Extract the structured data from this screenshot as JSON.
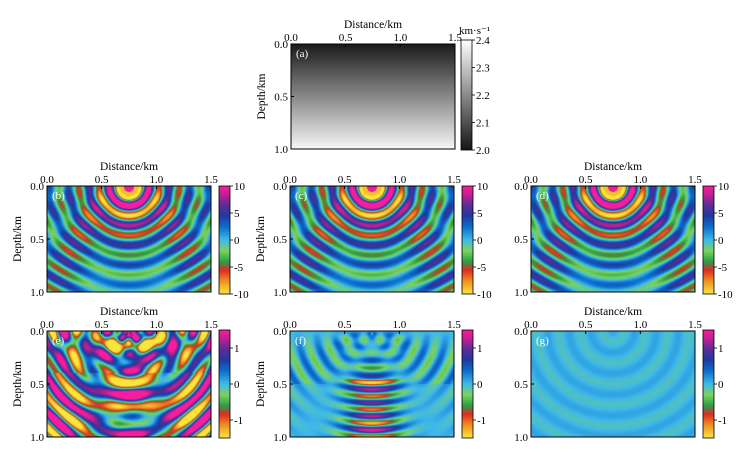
{
  "panels": [
    {
      "id": "a",
      "label": "(a)",
      "kind": "velocity",
      "xlabel": "Distance/km",
      "ylabel": "Depth/km",
      "xticks": [
        "0.0",
        "0.5",
        "1.0",
        "1.5"
      ],
      "yticks": [
        "0.0",
        "0.5",
        "1.0"
      ],
      "colorbar": {
        "unit": "km·s⁻¹",
        "ticks": [
          "2.4",
          "2.3",
          "2.2",
          "2.1",
          "2.0"
        ],
        "range": [
          2.0,
          2.4
        ]
      }
    },
    {
      "id": "b",
      "label": "(b)",
      "kind": "wave",
      "amp": 1.0,
      "xlabel": "Distance/km",
      "ylabel": "Depth/km",
      "xticks": [
        "0.0",
        "0.5",
        "1.0",
        "1.5"
      ],
      "yticks": [
        "0.0",
        "0.5",
        "1.0"
      ],
      "colorbar": {
        "ticks": [
          "10",
          "5",
          "0",
          "-5",
          "-10"
        ],
        "range": [
          -10,
          10
        ]
      }
    },
    {
      "id": "c",
      "label": "(c)",
      "kind": "wave",
      "amp": 1.0,
      "xlabel": "",
      "ylabel": "Depth/km",
      "xticks": [
        "0.0",
        "0.5",
        "1.0",
        "1.5"
      ],
      "yticks": [
        "0.0",
        "0.5",
        "1.0"
      ],
      "colorbar": {
        "ticks": [
          "10",
          "5",
          "0",
          "-5",
          "-10"
        ],
        "range": [
          -10,
          10
        ]
      }
    },
    {
      "id": "d",
      "label": "(d)",
      "kind": "wave",
      "amp": 1.0,
      "xlabel": "Distance/km",
      "ylabel": "",
      "xticks": [
        "0.0",
        "0.5",
        "1.0",
        "1.5"
      ],
      "yticks": [
        "0.0",
        "0.5",
        "1.0"
      ],
      "colorbar": {
        "ticks": [
          "10",
          "5",
          "0",
          "-5",
          "-10"
        ],
        "range": [
          -10,
          10
        ]
      }
    },
    {
      "id": "e",
      "label": "(e)",
      "kind": "diffA",
      "xlabel": "Distance/km",
      "ylabel": "Depth/km",
      "xticks": [
        "0.0",
        "0.5",
        "1.0",
        "1.5"
      ],
      "yticks": [
        "0.0",
        "0.5",
        "1.0"
      ],
      "colorbar": {
        "ticks": [
          "1",
          "0",
          "-1"
        ],
        "range": [
          -1.5,
          1.5
        ]
      }
    },
    {
      "id": "f",
      "label": "(f)",
      "kind": "diffB",
      "xlabel": "",
      "ylabel": "Depth/km",
      "xticks": [
        "0.0",
        "0.5",
        "1.0",
        "1.5"
      ],
      "yticks": [
        "0.0",
        "0.5",
        "1.0"
      ],
      "colorbar": {
        "ticks": [
          "1",
          "0",
          "-1"
        ],
        "range": [
          -1.5,
          1.5
        ]
      }
    },
    {
      "id": "g",
      "label": "(g)",
      "kind": "diffC",
      "xlabel": "Distance/km",
      "ylabel": "",
      "xticks": [
        "0.0",
        "0.5",
        "1.0",
        "1.5"
      ],
      "yticks": [
        "0.0",
        "0.5",
        "1.0"
      ],
      "colorbar": {
        "ticks": [
          "1",
          "0",
          "-1"
        ],
        "range": [
          -1.5,
          1.5
        ]
      }
    }
  ],
  "colors": {
    "wave_scale": [
      "#f7e23b",
      "#e8a020",
      "#e23a2a",
      "#d61e28",
      "#1aa650",
      "#73d25a",
      "#3bb6e8",
      "#0a66c8",
      "#1f3aa0",
      "#5e2a9a",
      "#b81e8c",
      "#f41a9a"
    ],
    "gray_scale": [
      "#1a1a1a",
      "#ffffff"
    ]
  }
}
